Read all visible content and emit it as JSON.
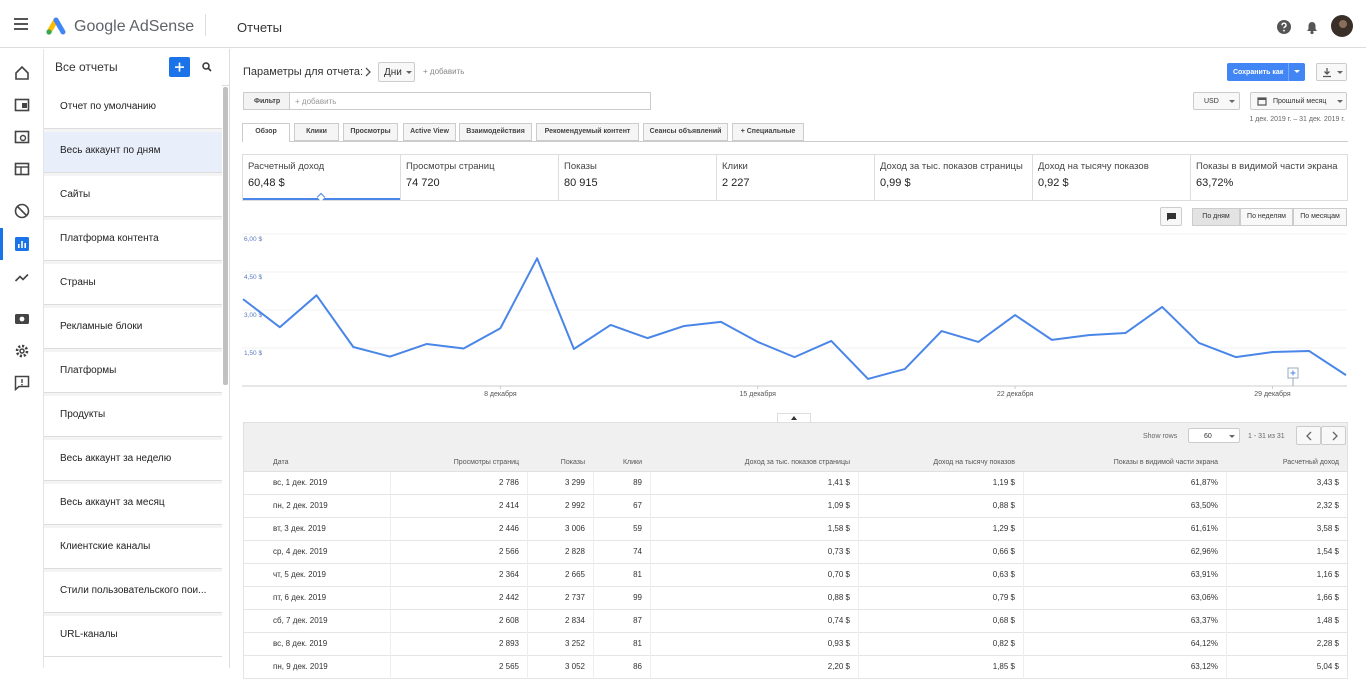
{
  "topbar": {
    "product": "Google AdSense",
    "page_title": "Отчеты"
  },
  "sidebar": {
    "title": "Все отчеты",
    "selected": 1,
    "items": [
      "Отчет по умолчанию",
      "Весь аккаунт по дням",
      "Сайты",
      "Платформа контента",
      "Страны",
      "Рекламные блоки",
      "Платформы",
      "Продукты",
      "Весь аккаунт за неделю",
      "Весь аккаунт за месяц",
      "Клиентские каналы",
      "Стили пользовательского пои...",
      "URL-каналы"
    ]
  },
  "params": {
    "label": "Параметры для отчета:",
    "dimension": "Дни",
    "add": "+ добавить",
    "save": "Сохранить как"
  },
  "filter": {
    "label": "Фильтр",
    "placeholder": "+ добавить",
    "currency": "USD",
    "period": "Прошлый месяц",
    "date_range": "1 дек. 2019 г. – 31 дек. 2019 г."
  },
  "tabs": {
    "active": 0,
    "items": [
      "Обзор",
      "Клики",
      "Просмотры",
      "Active View",
      "Взаимодействия",
      "Рекомендуемый контент",
      "Сеансы объявлений",
      "+ Специальные"
    ]
  },
  "metrics": {
    "selected": 0,
    "items": [
      {
        "label": "Расчетный доход",
        "value": "60,48 $"
      },
      {
        "label": "Просмотры страниц",
        "value": "74 720"
      },
      {
        "label": "Показы",
        "value": "80 915"
      },
      {
        "label": "Клики",
        "value": "2 227"
      },
      {
        "label": "Доход за тыс. показов страницы",
        "value": "0,99 $"
      },
      {
        "label": "Доход на тысячу показов",
        "value": "0,92 $"
      },
      {
        "label": "Показы в видимой части экрана",
        "value": "63,72%"
      }
    ]
  },
  "granularity": {
    "active": 0,
    "items": [
      "По дням",
      "По неделям",
      "По месяцам"
    ]
  },
  "chart_data": {
    "type": "line",
    "x": [
      1,
      2,
      3,
      4,
      5,
      6,
      7,
      8,
      9,
      10,
      11,
      12,
      13,
      14,
      15,
      16,
      17,
      18,
      19,
      20,
      21,
      22,
      23,
      24,
      25,
      26,
      27,
      28,
      29,
      30,
      31
    ],
    "values": [
      3.43,
      2.32,
      3.58,
      1.54,
      1.16,
      1.66,
      1.48,
      2.28,
      5.04,
      1.46,
      2.41,
      1.89,
      2.37,
      2.53,
      1.74,
      1.14,
      1.78,
      0.28,
      0.67,
      2.17,
      1.74,
      2.8,
      1.82,
      2.01,
      2.09,
      3.12,
      1.7,
      1.14,
      1.34,
      1.38,
      0.43
    ],
    "color": "#4a86e8",
    "xlim": [
      1,
      31
    ],
    "ylim": [
      0,
      6
    ],
    "xticks": [
      {
        "value": 8,
        "label": "8 декабря"
      },
      {
        "value": 15,
        "label": "15 декабря"
      },
      {
        "value": 22,
        "label": "22 декабря"
      },
      {
        "value": 29,
        "label": "29 декабря"
      }
    ],
    "yticks": [
      {
        "value": 1.5,
        "label": "1,50 $"
      },
      {
        "value": 3,
        "label": "3,00 $"
      },
      {
        "value": 4.5,
        "label": "4,50 $"
      },
      {
        "value": 6,
        "label": "6,00 $"
      }
    ],
    "grid": true
  },
  "table": {
    "show_rows_label": "Show rows",
    "rows_per_page": "60",
    "pagination": "1 - 31 из 31",
    "columns": [
      "Дата",
      "Просмотры страниц",
      "Показы",
      "Клики",
      "Доход за тыс. показов страницы",
      "Доход на тысячу показов",
      "Показы в видимой части экрана",
      "Расчетный доход"
    ],
    "rows": [
      [
        "вс, 1 дек. 2019",
        "2 786",
        "3 299",
        "89",
        "1,41 $",
        "1,19 $",
        "61,87%",
        "3,43 $"
      ],
      [
        "пн, 2 дек. 2019",
        "2 414",
        "2 992",
        "67",
        "1,09 $",
        "0,88 $",
        "63,50%",
        "2,32 $"
      ],
      [
        "вт, 3 дек. 2019",
        "2 446",
        "3 006",
        "59",
        "1,58 $",
        "1,29 $",
        "61,61%",
        "3,58 $"
      ],
      [
        "ср, 4 дек. 2019",
        "2 566",
        "2 828",
        "74",
        "0,73 $",
        "0,66 $",
        "62,96%",
        "1,54 $"
      ],
      [
        "чт, 5 дек. 2019",
        "2 364",
        "2 665",
        "81",
        "0,70 $",
        "0,63 $",
        "63,91%",
        "1,16 $"
      ],
      [
        "пт, 6 дек. 2019",
        "2 442",
        "2 737",
        "99",
        "0,88 $",
        "0,79 $",
        "63,06%",
        "1,66 $"
      ],
      [
        "сб, 7 дек. 2019",
        "2 608",
        "2 834",
        "87",
        "0,74 $",
        "0,68 $",
        "63,37%",
        "1,48 $"
      ],
      [
        "вс, 8 дек. 2019",
        "2 893",
        "3 252",
        "81",
        "0,93 $",
        "0,82 $",
        "64,12%",
        "2,28 $"
      ],
      [
        "пн, 9 дек. 2019",
        "2 565",
        "3 052",
        "86",
        "2,20 $",
        "1,85 $",
        "63,12%",
        "5,04 $"
      ]
    ]
  }
}
